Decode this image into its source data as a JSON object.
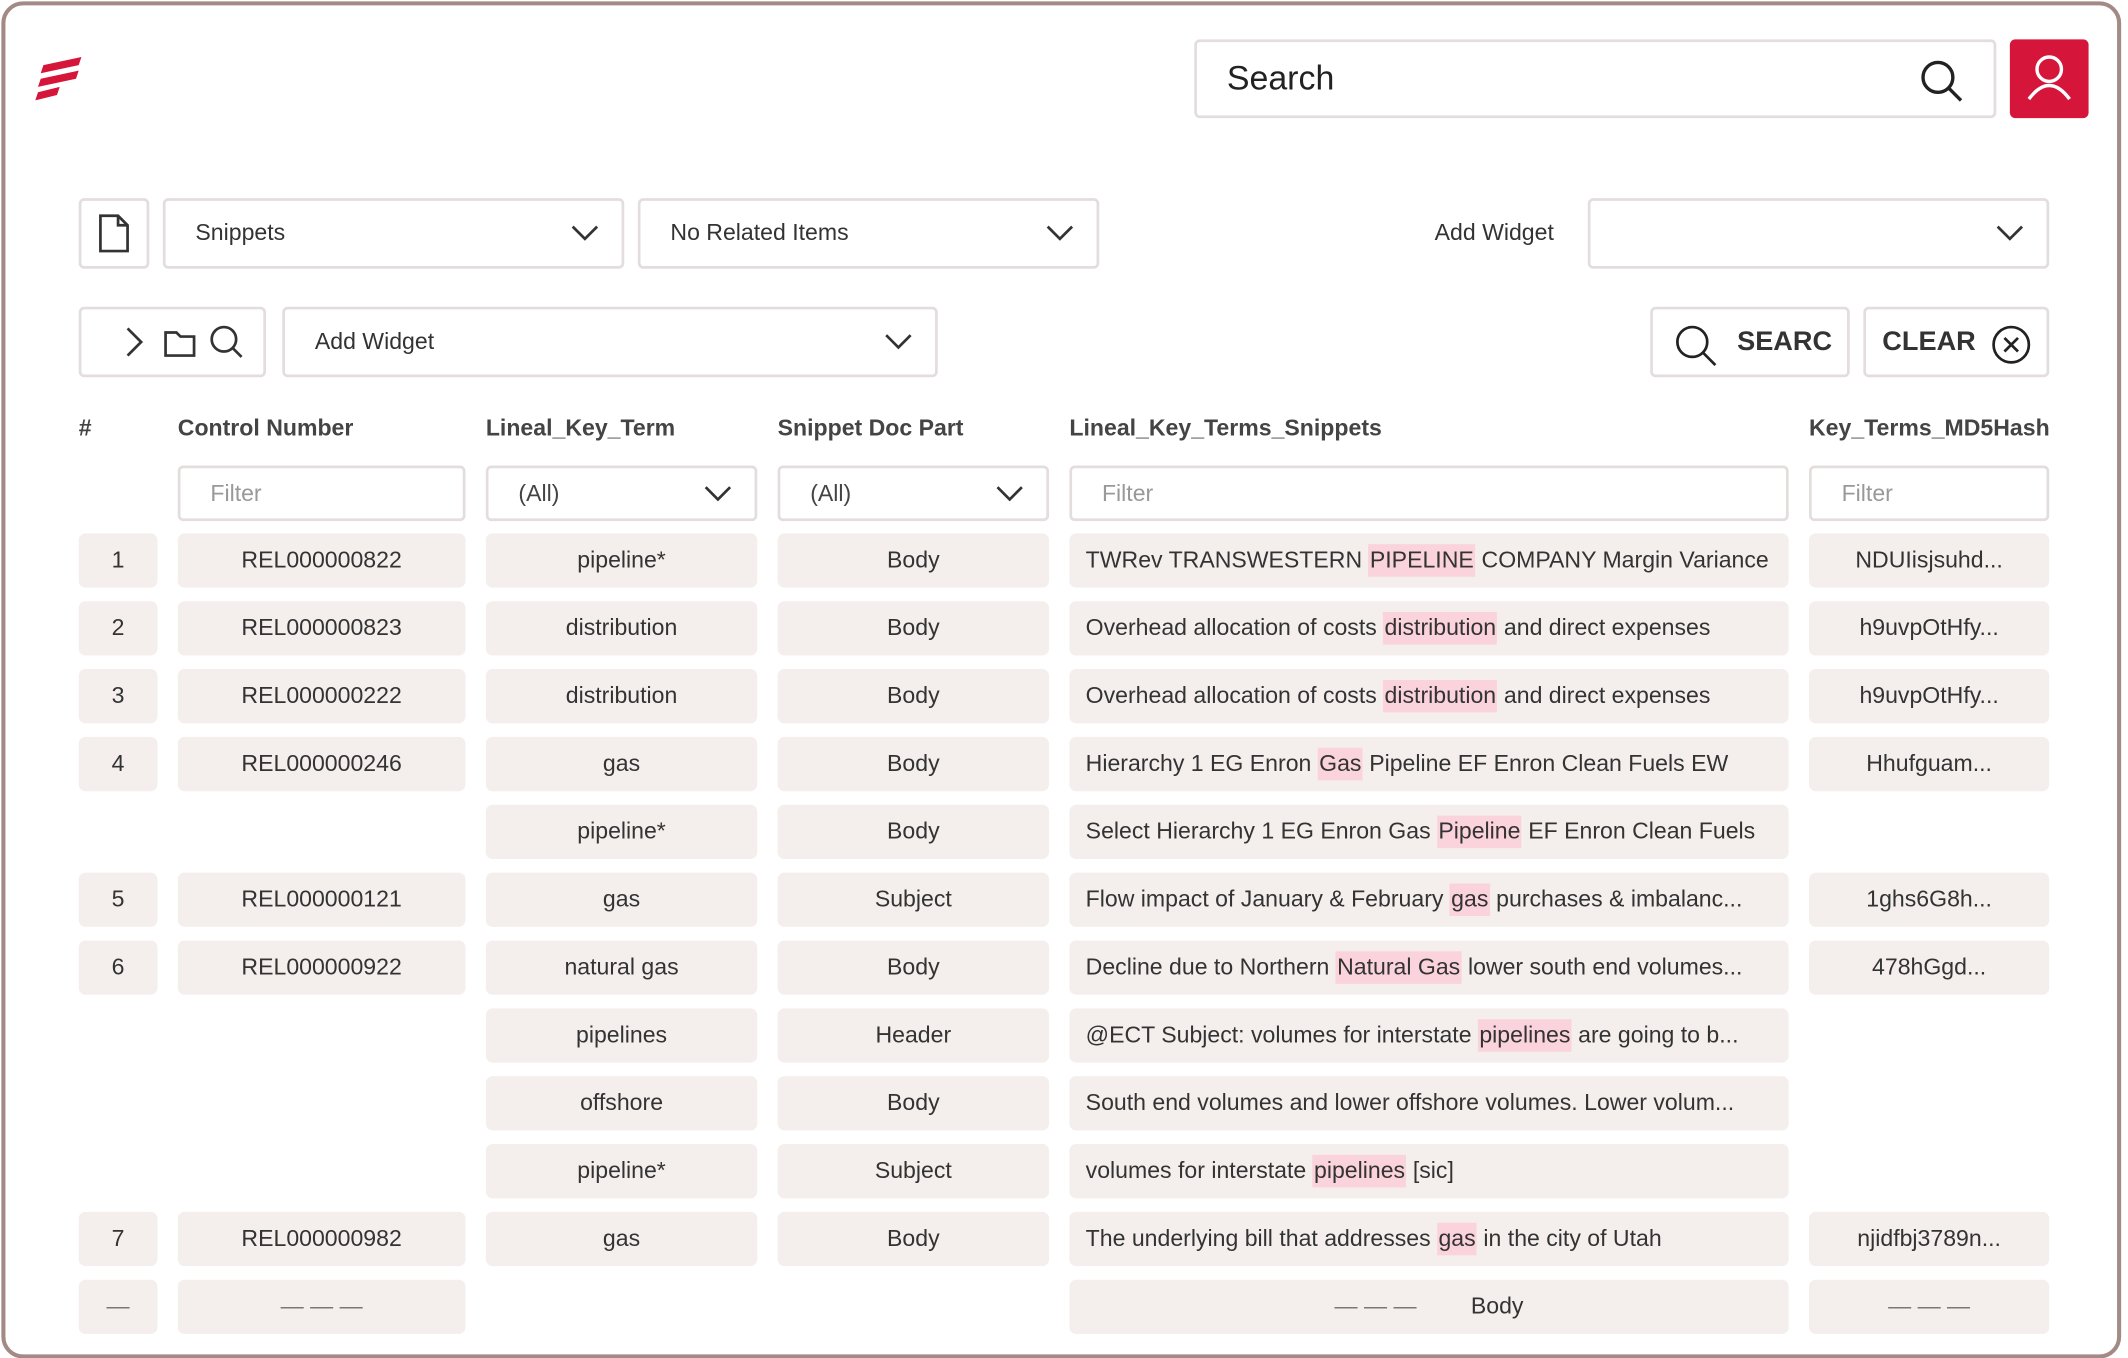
{
  "header": {
    "search_placeholder": "Search"
  },
  "toolbar": {
    "view": "Snippets",
    "related": "No Related Items",
    "add_widget_label": "Add Widget",
    "add_widget_2": "Add Widget",
    "search_button": "SEARC",
    "clear_button": "CLEAR"
  },
  "table": {
    "columns": [
      "#",
      "Control Number",
      "Lineal_Key_Term",
      "Snippet Doc Part",
      "Lineal_Key_Terms_Snippets",
      "Key_Terms_MD5Hash"
    ],
    "filters": [
      "Filter",
      "(All)",
      "(All)",
      "Filter",
      "Filter"
    ],
    "rows": [
      {
        "num": "1",
        "control": "REL000000822",
        "term": "pipeline*",
        "part": "Body",
        "snippet": {
          "before": "TWRev TRANSWESTERN ",
          "highlight": "PIPELINE",
          "after": " COMPANY Margin Variance"
        },
        "hash": "NDUIisjsuhd..."
      },
      {
        "num": "2",
        "control": "REL000000823",
        "term": "distribution",
        "part": "Body",
        "snippet": {
          "before": "Overhead allocation of costs ",
          "highlight": "distribution",
          "after": " and direct expenses"
        },
        "hash": "h9uvpOtHfy..."
      },
      {
        "num": "3",
        "control": "REL000000222",
        "term": "distribution",
        "part": "Body",
        "snippet": {
          "before": "Overhead allocation of costs ",
          "highlight": "distribution",
          "after": " and direct expenses"
        },
        "hash": "h9uvpOtHfy..."
      },
      {
        "num": "4",
        "control": "REL000000246",
        "term": "gas",
        "part": "Body",
        "snippet": {
          "before": "Hierarchy 1 EG Enron ",
          "highlight": "Gas",
          "after": " Pipeline EF Enron Clean Fuels EW"
        },
        "hash": "Hhufguam..."
      },
      {
        "term": "pipeline*",
        "part": "Body",
        "snippet": {
          "before": "Select Hierarchy 1 EG Enron Gas ",
          "highlight": "Pipeline",
          "after": " EF Enron Clean Fuels"
        }
      },
      {
        "num": "5",
        "control": "REL000000121",
        "term": "gas",
        "part": "Subject",
        "snippet": {
          "before": "Flow impact of January & February ",
          "highlight": "gas",
          "after": " purchases & imbalanc..."
        },
        "hash": "1ghs6G8h..."
      },
      {
        "num": "6",
        "control": "REL000000922",
        "term": "natural gas",
        "part": "Body",
        "snippet": {
          "before": "Decline due to Northern ",
          "highlight": "Natural Gas",
          "after": " lower south end volumes..."
        },
        "hash": "478hGgd..."
      },
      {
        "term": "pipelines",
        "part": "Header",
        "snippet": {
          "before": "@ECT Subject: volumes for interstate ",
          "highlight": "pipelines",
          "after": " are going to b..."
        }
      },
      {
        "term": "offshore",
        "part": "Body",
        "snippet": {
          "before": "South end volumes and lower offshore volumes. Lower volum..."
        }
      },
      {
        "term": "pipeline*",
        "part": "Subject",
        "snippet": {
          "before": "volumes for interstate ",
          "highlight": "pipelines",
          "after": " [sic]"
        }
      },
      {
        "num": "7",
        "control": "REL000000982",
        "term": "gas",
        "part": "Body",
        "snippet": {
          "before": "The underlying bill that addresses ",
          "highlight": "gas",
          "after": " in the city of Utah"
        },
        "hash": "njidfbj3789n..."
      }
    ],
    "placeholder_row": {
      "num": "—",
      "control": "— — —",
      "snippet_dashes": "— — —",
      "snippet_part": "Body",
      "hash": "— — —"
    }
  }
}
